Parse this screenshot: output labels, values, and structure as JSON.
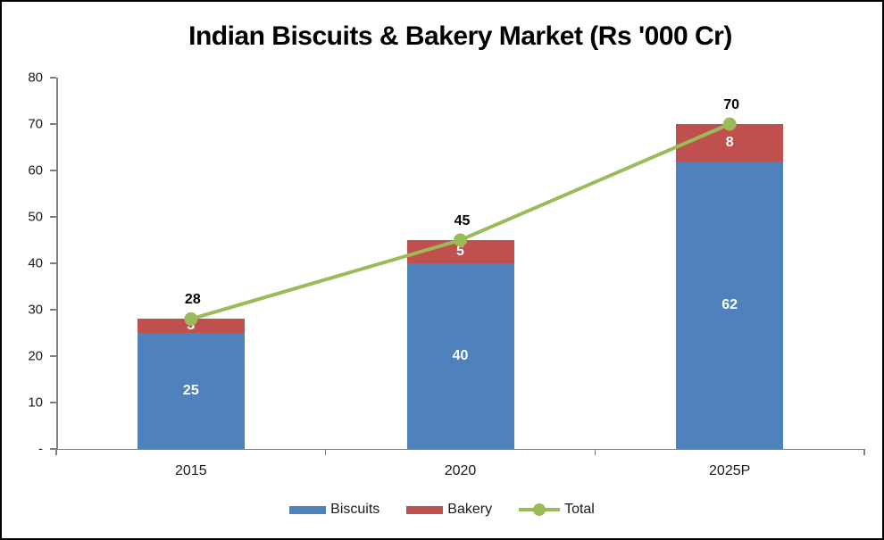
{
  "chart_data": {
    "type": "bar",
    "subtype": "stacked-column-with-line-overlay",
    "title": "Indian Biscuits & Bakery Market (Rs '000 Cr)",
    "categories": [
      "2015",
      "2020",
      "2025P"
    ],
    "series": [
      {
        "name": "Biscuits",
        "kind": "bar",
        "color": "#4F81BD",
        "values": [
          25,
          40,
          62
        ],
        "label_color": "#FFFFFF"
      },
      {
        "name": "Bakery",
        "kind": "bar",
        "color": "#C0504D",
        "values": [
          3,
          5,
          8
        ],
        "label_color": "#FFFFFF"
      },
      {
        "name": "Total",
        "kind": "line",
        "color": "#9BBB59",
        "values": [
          28,
          45,
          70
        ],
        "label_color": "#000000"
      }
    ],
    "ylim": [
      0,
      80
    ],
    "ytick_step": 10,
    "ytick_labels": [
      "-",
      "10",
      "20",
      "30",
      "40",
      "50",
      "60",
      "70",
      "80"
    ],
    "grid": false,
    "legend_position": "bottom",
    "axis_color": "#7F7F7F",
    "background_color": "#FFFFFF",
    "border_color": "#000000"
  }
}
